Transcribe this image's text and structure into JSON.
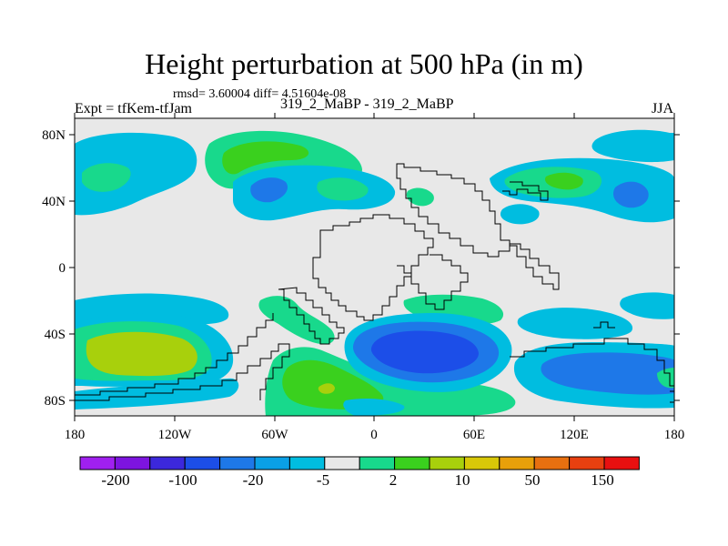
{
  "plot": {
    "title": "Height perturbation at 500 hPa (in m)",
    "stats": "rmsd= 3.60004 diff= 4.51604e-08",
    "experiment": "Expt = tfKem-tfJam",
    "cases": "319_2_MaBP - 319_2_MaBP",
    "season": "JJA"
  },
  "map": {
    "lon_ticks": [
      "180",
      "120W",
      "60W",
      "0",
      "60E",
      "120E",
      "180"
    ],
    "lat_ticks": [
      "80N",
      "40N",
      "0",
      "40S",
      "80S"
    ],
    "projection": "cylindrical equidistant",
    "lon_range": [
      -180,
      180
    ],
    "lat_range": [
      -90,
      90
    ]
  },
  "colorbar": {
    "colors": [
      "#a020f0",
      "#7d14e0",
      "#3c28dc",
      "#1c4ee8",
      "#1e78e8",
      "#0aa0e6",
      "#00bde0",
      "#e8e8e8",
      "#18d98c",
      "#3ad01e",
      "#a8d00c",
      "#d8c808",
      "#e8a00a",
      "#e87010",
      "#e84010",
      "#e81010"
    ],
    "labels": [
      "-200",
      "-100",
      "-20",
      "-5",
      "2",
      "10",
      "50",
      "150"
    ]
  }
}
